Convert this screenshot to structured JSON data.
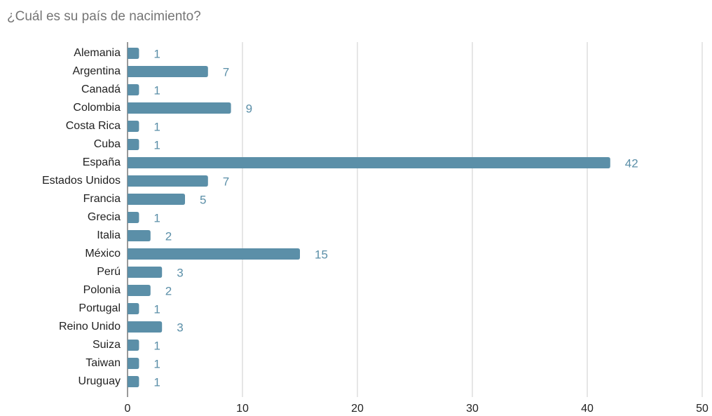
{
  "chart_data": {
    "type": "barh",
    "title": "¿Cuál es su país de nacimiento?",
    "categories": [
      "Alemania",
      "Argentina",
      "Canadá",
      "Colombia",
      "Costa Rica",
      "Cuba",
      "España",
      "Estados Unidos",
      "Francia",
      "Grecia",
      "Italia",
      "México",
      "Perú",
      "Polonia",
      "Portugal",
      "Reino Unido",
      "Suiza",
      "Taiwan",
      "Uruguay"
    ],
    "values": [
      1,
      7,
      1,
      9,
      1,
      1,
      42,
      7,
      5,
      1,
      2,
      15,
      3,
      2,
      1,
      3,
      1,
      1,
      1
    ],
    "color": "#5b8fa8",
    "xlim": [
      0,
      50
    ],
    "xticks": [
      0,
      10,
      20,
      30,
      40,
      50
    ],
    "grid": true
  }
}
